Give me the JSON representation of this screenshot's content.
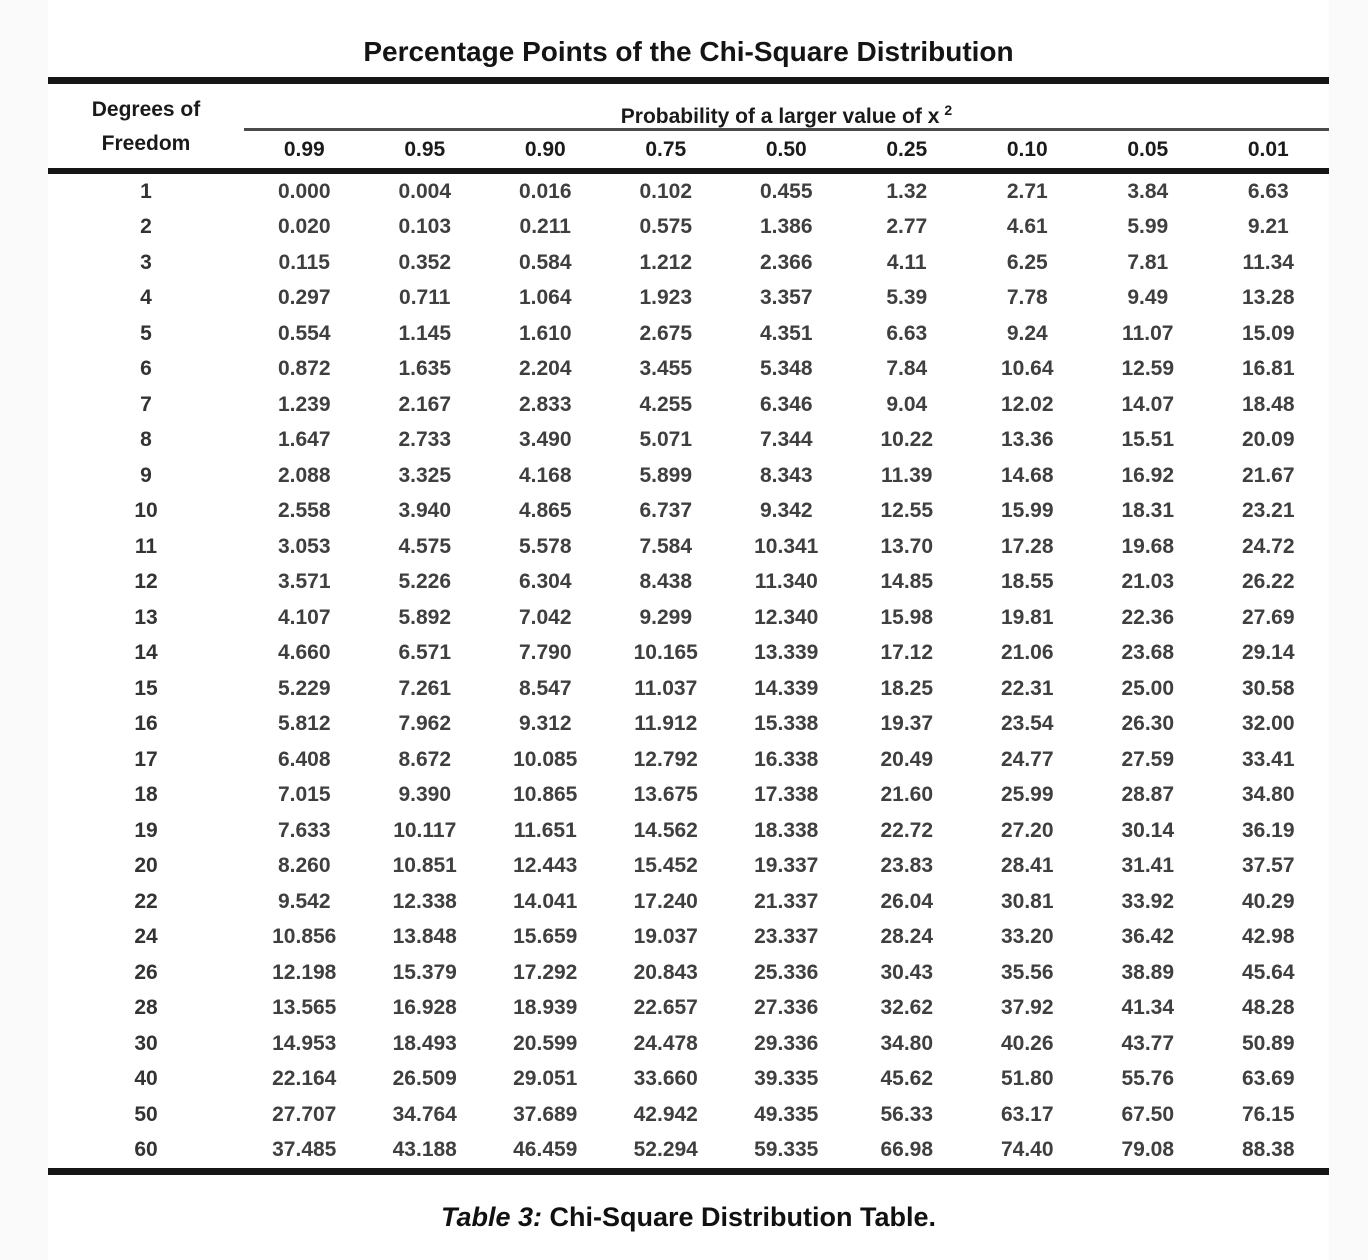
{
  "document": {
    "title": "Percentage Points of the Chi-Square Distribution",
    "caption": {
      "prefix": "Table 3:",
      "text": "Chi-Square Distribution Table."
    }
  },
  "table": {
    "row_header_line1": "Degrees of",
    "row_header_line2": "Freedom",
    "column_group_header": "Probability of a larger value of x",
    "column_group_superscript": "2",
    "column_headers": [
      "0.99",
      "0.95",
      "0.90",
      "0.75",
      "0.50",
      "0.25",
      "0.10",
      "0.05",
      "0.01"
    ],
    "rows": [
      {
        "df": "1",
        "values": [
          "0.000",
          "0.004",
          "0.016",
          "0.102",
          "0.455",
          "1.32",
          "2.71",
          "3.84",
          "6.63"
        ]
      },
      {
        "df": "2",
        "values": [
          "0.020",
          "0.103",
          "0.211",
          "0.575",
          "1.386",
          "2.77",
          "4.61",
          "5.99",
          "9.21"
        ]
      },
      {
        "df": "3",
        "values": [
          "0.115",
          "0.352",
          "0.584",
          "1.212",
          "2.366",
          "4.11",
          "6.25",
          "7.81",
          "11.34"
        ]
      },
      {
        "df": "4",
        "values": [
          "0.297",
          "0.711",
          "1.064",
          "1.923",
          "3.357",
          "5.39",
          "7.78",
          "9.49",
          "13.28"
        ]
      },
      {
        "df": "5",
        "values": [
          "0.554",
          "1.145",
          "1.610",
          "2.675",
          "4.351",
          "6.63",
          "9.24",
          "11.07",
          "15.09"
        ]
      },
      {
        "df": "6",
        "values": [
          "0.872",
          "1.635",
          "2.204",
          "3.455",
          "5.348",
          "7.84",
          "10.64",
          "12.59",
          "16.81"
        ]
      },
      {
        "df": "7",
        "values": [
          "1.239",
          "2.167",
          "2.833",
          "4.255",
          "6.346",
          "9.04",
          "12.02",
          "14.07",
          "18.48"
        ]
      },
      {
        "df": "8",
        "values": [
          "1.647",
          "2.733",
          "3.490",
          "5.071",
          "7.344",
          "10.22",
          "13.36",
          "15.51",
          "20.09"
        ]
      },
      {
        "df": "9",
        "values": [
          "2.088",
          "3.325",
          "4.168",
          "5.899",
          "8.343",
          "11.39",
          "14.68",
          "16.92",
          "21.67"
        ]
      },
      {
        "df": "10",
        "values": [
          "2.558",
          "3.940",
          "4.865",
          "6.737",
          "9.342",
          "12.55",
          "15.99",
          "18.31",
          "23.21"
        ]
      },
      {
        "df": "11",
        "values": [
          "3.053",
          "4.575",
          "5.578",
          "7.584",
          "10.341",
          "13.70",
          "17.28",
          "19.68",
          "24.72"
        ]
      },
      {
        "df": "12",
        "values": [
          "3.571",
          "5.226",
          "6.304",
          "8.438",
          "11.340",
          "14.85",
          "18.55",
          "21.03",
          "26.22"
        ]
      },
      {
        "df": "13",
        "values": [
          "4.107",
          "5.892",
          "7.042",
          "9.299",
          "12.340",
          "15.98",
          "19.81",
          "22.36",
          "27.69"
        ]
      },
      {
        "df": "14",
        "values": [
          "4.660",
          "6.571",
          "7.790",
          "10.165",
          "13.339",
          "17.12",
          "21.06",
          "23.68",
          "29.14"
        ]
      },
      {
        "df": "15",
        "values": [
          "5.229",
          "7.261",
          "8.547",
          "11.037",
          "14.339",
          "18.25",
          "22.31",
          "25.00",
          "30.58"
        ]
      },
      {
        "df": "16",
        "values": [
          "5.812",
          "7.962",
          "9.312",
          "11.912",
          "15.338",
          "19.37",
          "23.54",
          "26.30",
          "32.00"
        ]
      },
      {
        "df": "17",
        "values": [
          "6.408",
          "8.672",
          "10.085",
          "12.792",
          "16.338",
          "20.49",
          "24.77",
          "27.59",
          "33.41"
        ]
      },
      {
        "df": "18",
        "values": [
          "7.015",
          "9.390",
          "10.865",
          "13.675",
          "17.338",
          "21.60",
          "25.99",
          "28.87",
          "34.80"
        ]
      },
      {
        "df": "19",
        "values": [
          "7.633",
          "10.117",
          "11.651",
          "14.562",
          "18.338",
          "22.72",
          "27.20",
          "30.14",
          "36.19"
        ]
      },
      {
        "df": "20",
        "values": [
          "8.260",
          "10.851",
          "12.443",
          "15.452",
          "19.337",
          "23.83",
          "28.41",
          "31.41",
          "37.57"
        ]
      },
      {
        "df": "22",
        "values": [
          "9.542",
          "12.338",
          "14.041",
          "17.240",
          "21.337",
          "26.04",
          "30.81",
          "33.92",
          "40.29"
        ]
      },
      {
        "df": "24",
        "values": [
          "10.856",
          "13.848",
          "15.659",
          "19.037",
          "23.337",
          "28.24",
          "33.20",
          "36.42",
          "42.98"
        ]
      },
      {
        "df": "26",
        "values": [
          "12.198",
          "15.379",
          "17.292",
          "20.843",
          "25.336",
          "30.43",
          "35.56",
          "38.89",
          "45.64"
        ]
      },
      {
        "df": "28",
        "values": [
          "13.565",
          "16.928",
          "18.939",
          "22.657",
          "27.336",
          "32.62",
          "37.92",
          "41.34",
          "48.28"
        ]
      },
      {
        "df": "30",
        "values": [
          "14.953",
          "18.493",
          "20.599",
          "24.478",
          "29.336",
          "34.80",
          "40.26",
          "43.77",
          "50.89"
        ]
      },
      {
        "df": "40",
        "values": [
          "22.164",
          "26.509",
          "29.051",
          "33.660",
          "39.335",
          "45.62",
          "51.80",
          "55.76",
          "63.69"
        ]
      },
      {
        "df": "50",
        "values": [
          "27.707",
          "34.764",
          "37.689",
          "42.942",
          "49.335",
          "56.33",
          "63.17",
          "67.50",
          "76.15"
        ]
      },
      {
        "df": "60",
        "values": [
          "37.485",
          "43.188",
          "46.459",
          "52.294",
          "59.335",
          "66.98",
          "74.40",
          "79.08",
          "88.38"
        ]
      }
    ]
  }
}
